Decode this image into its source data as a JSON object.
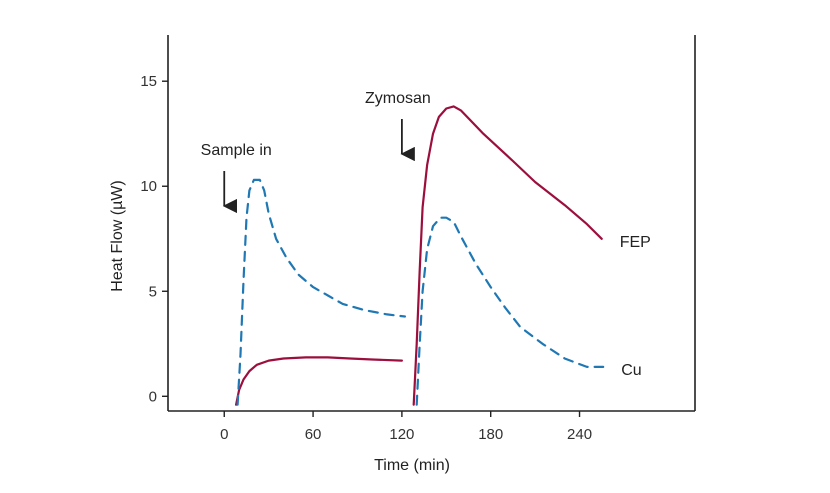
{
  "chart_data": {
    "type": "line",
    "xlabel": "Time (min)",
    "ylabel": "Heat Flow (µW)",
    "xlim": [
      -38,
      318
    ],
    "ylim": [
      -0.7,
      17.2
    ],
    "xticks": [
      0,
      60,
      120,
      180,
      240
    ],
    "yticks": [
      0,
      5,
      10,
      15
    ],
    "grid": false,
    "colors": {
      "FEP": "#9c0f3c",
      "Cu": "#1f78b4",
      "axis": "#222222"
    },
    "annotations": [
      {
        "text": "Sample in",
        "x": 0
      },
      {
        "text": "Zymosan",
        "x": 120
      }
    ],
    "series": [
      {
        "name": "FEP",
        "style": "solid",
        "segments": [
          [
            [
              8,
              -0.4
            ],
            [
              10,
              0.3
            ],
            [
              13,
              0.8
            ],
            [
              17,
              1.2
            ],
            [
              22,
              1.5
            ],
            [
              30,
              1.7
            ],
            [
              40,
              1.8
            ],
            [
              55,
              1.85
            ],
            [
              70,
              1.85
            ],
            [
              85,
              1.8
            ],
            [
              100,
              1.75
            ],
            [
              120,
              1.7
            ]
          ],
          [
            [
              128,
              -0.4
            ],
            [
              130,
              2.5
            ],
            [
              132,
              6.0
            ],
            [
              134,
              9.0
            ],
            [
              137,
              11.0
            ],
            [
              141,
              12.5
            ],
            [
              145,
              13.3
            ],
            [
              150,
              13.7
            ],
            [
              155,
              13.8
            ],
            [
              160,
              13.6
            ],
            [
              175,
              12.5
            ],
            [
              195,
              11.2
            ],
            [
              210,
              10.2
            ],
            [
              230,
              9.1
            ],
            [
              245,
              8.2
            ],
            [
              255,
              7.5
            ]
          ]
        ]
      },
      {
        "name": "Cu",
        "style": "dashed",
        "segments": [
          [
            [
              9,
              -0.4
            ],
            [
              11,
              2.0
            ],
            [
              13,
              5.5
            ],
            [
              15,
              8.5
            ],
            [
              17,
              9.8
            ],
            [
              20,
              10.3
            ],
            [
              24,
              10.3
            ],
            [
              27,
              9.8
            ],
            [
              30,
              8.7
            ],
            [
              35,
              7.5
            ],
            [
              42,
              6.6
            ],
            [
              50,
              5.8
            ],
            [
              60,
              5.2
            ],
            [
              70,
              4.8
            ],
            [
              80,
              4.4
            ],
            [
              95,
              4.1
            ],
            [
              110,
              3.9
            ],
            [
              122,
              3.8
            ]
          ],
          [
            [
              130,
              -0.4
            ],
            [
              132,
              2.5
            ],
            [
              134,
              5.0
            ],
            [
              137,
              7.0
            ],
            [
              141,
              8.1
            ],
            [
              146,
              8.5
            ],
            [
              150,
              8.5
            ],
            [
              155,
              8.3
            ],
            [
              160,
              7.6
            ],
            [
              170,
              6.3
            ],
            [
              180,
              5.2
            ],
            [
              190,
              4.2
            ],
            [
              200,
              3.3
            ],
            [
              215,
              2.5
            ],
            [
              230,
              1.8
            ],
            [
              245,
              1.4
            ],
            [
              256,
              1.4
            ]
          ]
        ]
      }
    ]
  }
}
